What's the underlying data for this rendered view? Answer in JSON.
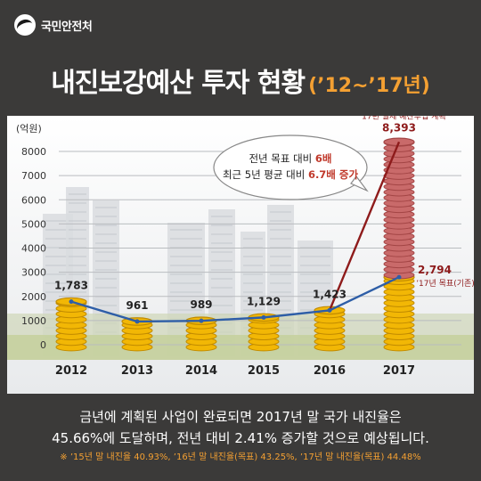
{
  "brand": {
    "name": "국민안전처",
    "emblem_icon": "taegeuk-emblem-icon"
  },
  "title": {
    "main": "내진보강예산 투자 현황",
    "sub": "(’12~’17년)"
  },
  "chart_data": {
    "type": "line",
    "ylabel": "(억원)",
    "ylim": [
      0,
      8000
    ],
    "yticks": [
      0,
      1000,
      2000,
      3000,
      4000,
      5000,
      6000,
      7000,
      8000
    ],
    "grid": true,
    "categories": [
      "2012",
      "2013",
      "2014",
      "2015",
      "2016",
      "2017"
    ],
    "series": [
      {
        "values": [
          1783,
          961,
          989,
          1129,
          1423,
          2794
        ],
        "value_labels": [
          "1,783",
          "961",
          "989",
          "1,129",
          "1,423",
          "2,794"
        ]
      },
      {
        "values": [
          null,
          null,
          null,
          null,
          1423,
          8393
        ],
        "value_labels": [
          null,
          null,
          null,
          null,
          null,
          "8,393"
        ]
      }
    ],
    "annotations": {
      "actual_2017_label": "’17년 실제 예산투입 계획",
      "target_2017_label": "’17년 목표(기존)",
      "callout_line1_prefix": "전년 목표 대비 ",
      "callout_line1_value": "6배",
      "callout_line2_prefix": "최근 5년 평균 대비 ",
      "callout_line2_value": "6.7배 증가"
    },
    "colors": {
      "target_line": "#2e5ea7",
      "actual_line": "#8e1b1b",
      "coin_gold": "#f2b705",
      "coin_red": "#c96a6a",
      "target_label": "#8e1b1b",
      "actual_label": "#8e1b1b"
    }
  },
  "footer": {
    "line1": "금년에 계획된 사업이 완료되면 2017년 말 국가 내진율은",
    "line2": "45.66%에 도달하며, 전년 대비 2.41% 증가할 것으로 예상됩니다.",
    "note": "※ ’15년 말 내진율 40.93%, ’16년 말 내진율(목표) 43.25%, ’17년 말 내진율(목표) 44.48%"
  }
}
